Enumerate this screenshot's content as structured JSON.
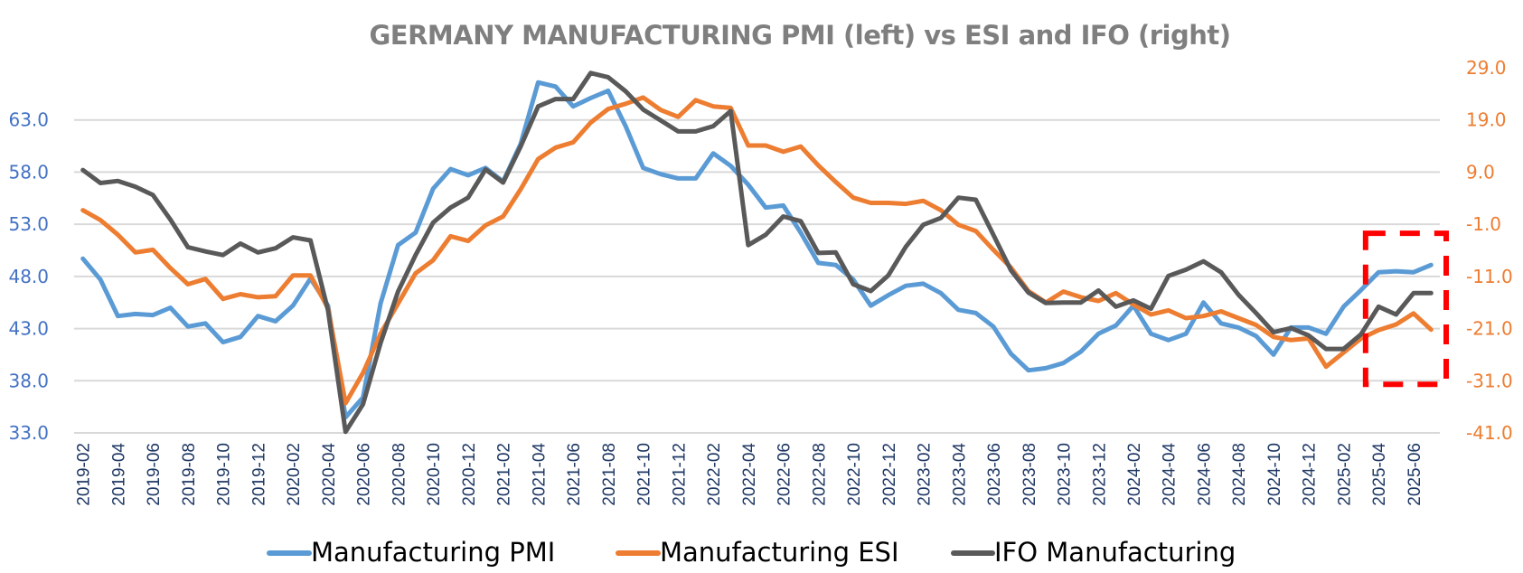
{
  "chart_data": {
    "type": "line",
    "title": "GERMANY  MANUFACTURING PMI (left) vs ESI and IFO (right)",
    "xlabel": "",
    "ylabel_left": "",
    "ylabel_right": "",
    "x": [
      "2019-02",
      "2019-03",
      "2019-04",
      "2019-05",
      "2019-06",
      "2019-07",
      "2019-08",
      "2019-09",
      "2019-10",
      "2019-11",
      "2019-12",
      "2020-01",
      "2020-02",
      "2020-03",
      "2020-04",
      "2020-05",
      "2020-06",
      "2020-07",
      "2020-08",
      "2020-09",
      "2020-10",
      "2020-11",
      "2020-12",
      "2021-01",
      "2021-02",
      "2021-03",
      "2021-04",
      "2021-05",
      "2021-06",
      "2021-07",
      "2021-08",
      "2021-09",
      "2021-10",
      "2021-11",
      "2021-12",
      "2022-01",
      "2022-02",
      "2022-03",
      "2022-04",
      "2022-05",
      "2022-06",
      "2022-07",
      "2022-08",
      "2022-09",
      "2022-10",
      "2022-11",
      "2022-12",
      "2023-01",
      "2023-02",
      "2023-03",
      "2023-04",
      "2023-05",
      "2023-06",
      "2023-07",
      "2023-08",
      "2023-09",
      "2023-10",
      "2023-11",
      "2023-12",
      "2024-01",
      "2024-02",
      "2024-03",
      "2024-04",
      "2024-05",
      "2024-06",
      "2024-07",
      "2024-08",
      "2024-09",
      "2024-10",
      "2024-11",
      "2024-12",
      "2025-01",
      "2025-02",
      "2025-03",
      "2025-04",
      "2025-05",
      "2025-06",
      "2025-07"
    ],
    "xtick_labels": [
      "2019-02",
      "2019-04",
      "2019-06",
      "2019-08",
      "2019-10",
      "2019-12",
      "2020-02",
      "2020-04",
      "2020-06",
      "2020-08",
      "2020-10",
      "2020-12",
      "2021-02",
      "2021-04",
      "2021-06",
      "2021-08",
      "2021-10",
      "2021-12",
      "2022-02",
      "2022-04",
      "2022-06",
      "2022-08",
      "2022-10",
      "2022-12",
      "2023-02",
      "2023-04",
      "2023-06",
      "2023-08",
      "2023-10",
      "2023-12",
      "2024-02",
      "2024-04",
      "2024-06",
      "2024-08",
      "2024-10",
      "2024-12",
      "2025-02",
      "2025-04",
      "2025-06"
    ],
    "y_left": {
      "ticks": [
        "33.0",
        "38.0",
        "43.0",
        "48.0",
        "53.0",
        "58.0",
        "63.0"
      ],
      "range": [
        33,
        68
      ],
      "color": "#4472c4"
    },
    "y_right": {
      "ticks": [
        "-41.0",
        "-31.0",
        "-21.0",
        "-11.0",
        "-1.0",
        "9.0",
        "19.0",
        "29.0"
      ],
      "range": [
        -41,
        29
      ],
      "color": "#ed7d31"
    },
    "grid": true,
    "legend_position": "bottom",
    "series": [
      {
        "name": "Manufacturing PMI",
        "axis": "left",
        "color": "#5b9bd5",
        "values": [
          49.7,
          47.7,
          44.2,
          44.4,
          44.3,
          45.0,
          43.2,
          43.5,
          41.7,
          42.2,
          44.2,
          43.7,
          45.2,
          47.8,
          45.2,
          34.5,
          36.4,
          45.4,
          51.0,
          52.2,
          56.4,
          58.3,
          57.7,
          58.4,
          57.1,
          60.7,
          66.6,
          66.2,
          64.3,
          65.1,
          65.8,
          62.4,
          58.4,
          57.8,
          57.4,
          57.4,
          59.8,
          58.6,
          56.8,
          54.6,
          54.8,
          52.2,
          49.3,
          49.1,
          47.7,
          45.2,
          46.2,
          47.1,
          47.3,
          46.4,
          44.8,
          44.5,
          43.2,
          40.6,
          39.0,
          39.2,
          39.7,
          40.8,
          42.5,
          43.3,
          45.2,
          42.5,
          41.9,
          42.5,
          45.5,
          43.5,
          43.1,
          42.3,
          40.5,
          43.1,
          43.1,
          42.5,
          45.1,
          46.7,
          48.4,
          48.5,
          48.4,
          49.1
        ]
      },
      {
        "name": "Manufacturing ESI",
        "axis": "right",
        "color": "#ed7d31",
        "values": [
          1.7,
          -0.2,
          -3.0,
          -6.4,
          -5.9,
          -9.4,
          -12.5,
          -11.5,
          -15.3,
          -14.4,
          -15.0,
          -14.8,
          -10.8,
          -10.8,
          -17.1,
          -35.3,
          -29.5,
          -22.0,
          -16.2,
          -10.4,
          -7.9,
          -3.3,
          -4.2,
          -1.2,
          0.5,
          5.7,
          11.5,
          13.7,
          14.7,
          18.5,
          21.1,
          22.1,
          23.3,
          20.9,
          19.6,
          22.8,
          21.6,
          21.3,
          14.1,
          14.1,
          12.9,
          13.9,
          10.3,
          7.1,
          4.1,
          3.1,
          3.1,
          2.9,
          3.5,
          1.7,
          -1.1,
          -2.3,
          -5.9,
          -9.3,
          -13.8,
          -16.0,
          -13.9,
          -15.0,
          -15.7,
          -14.2,
          -16.4,
          -18.3,
          -17.5,
          -19.0,
          -18.6,
          -17.7,
          -19.0,
          -20.3,
          -22.6,
          -23.2,
          -22.9,
          -28.3,
          -25.6,
          -22.9,
          -21.3,
          -20.2,
          -18.1,
          -21.2
        ]
      },
      {
        "name": "IFO Manufacturing",
        "axis": "right",
        "color": "#595959",
        "values": [
          9.4,
          6.9,
          7.3,
          6.2,
          4.6,
          -0.1,
          -5.4,
          -6.2,
          -6.9,
          -4.7,
          -6.4,
          -5.6,
          -3.5,
          -4.1,
          -17.5,
          -40.8,
          -35.5,
          -23.8,
          -13.9,
          -6.9,
          -0.7,
          2.2,
          4.1,
          9.5,
          7.0,
          13.9,
          21.6,
          23.0,
          23.0,
          28.0,
          27.2,
          24.5,
          21.0,
          18.9,
          16.8,
          16.8,
          17.8,
          20.7,
          -5.0,
          -3.0,
          0.5,
          -0.4,
          -6.5,
          -6.4,
          -12.5,
          -13.8,
          -10.8,
          -5.3,
          -1.1,
          0.2,
          4.1,
          3.7,
          -3.0,
          -9.8,
          -14.1,
          -16.1,
          -16.0,
          -16.0,
          -13.7,
          -16.8,
          -15.6,
          -17.2,
          -10.9,
          -9.7,
          -8.1,
          -10.2,
          -14.5,
          -18.0,
          -21.7,
          -20.9,
          -22.3,
          -24.9,
          -24.9,
          -22.1,
          -16.8,
          -18.3,
          -14.2,
          -14.2
        ]
      }
    ],
    "annotations": [
      {
        "type": "dashed-box",
        "color": "#ff0000",
        "x_range": [
          "2025-03",
          "2025-07"
        ],
        "y_right_range": [
          -31,
          -1
        ],
        "description": "highlight of latest months"
      }
    ]
  }
}
